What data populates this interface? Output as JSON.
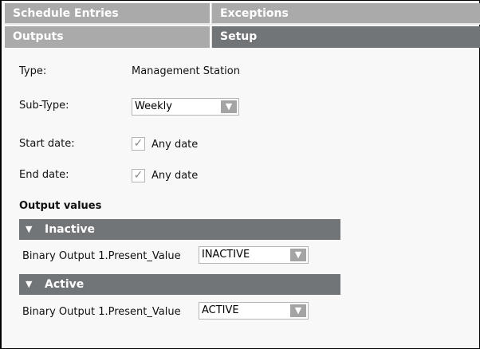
{
  "tabs": {
    "schedule_entries": "Schedule Entries",
    "exceptions": "Exceptions",
    "outputs": "Outputs",
    "setup": "Setup",
    "active_tab": "Setup"
  },
  "form": {
    "type_label": "Type:",
    "type_value": "Management Station",
    "subtype_label": "Sub-Type:",
    "subtype_value": "Weekly",
    "start_label": "Start date:",
    "start_any": "Any date",
    "start_checked": true,
    "end_label": "End date:",
    "end_any": "Any date",
    "end_checked": true
  },
  "outputs": {
    "heading": "Output values",
    "sections": [
      {
        "title": "Inactive",
        "row_label": "Binary Output 1.Present_Value",
        "value": "INACTIVE"
      },
      {
        "title": "Active",
        "row_label": "Binary Output 1.Present_Value",
        "value": "ACTIVE"
      }
    ]
  },
  "icons": {
    "dropdown": "triangle-down",
    "check": "checkmark",
    "collapse": "triangle-down"
  },
  "colors": {
    "tab_inactive": "#aaaaaa",
    "tab_active": "#727578",
    "section_header": "#727578"
  }
}
